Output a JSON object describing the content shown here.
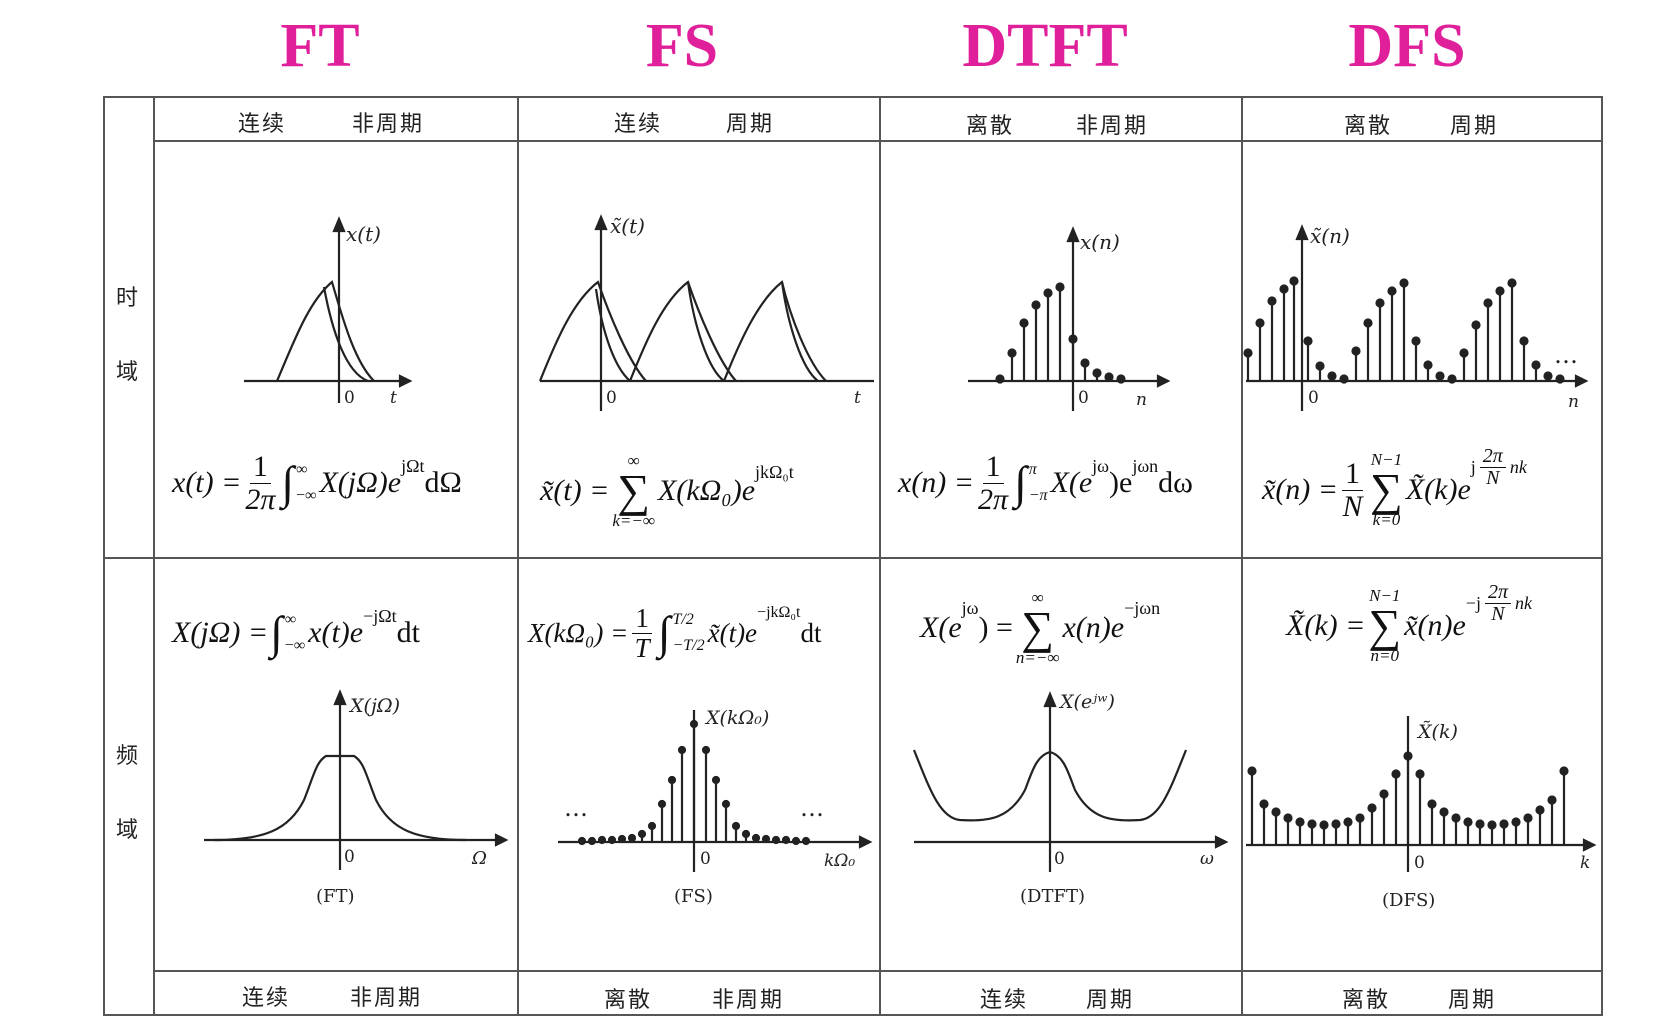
{
  "headers": [
    "FT",
    "FS",
    "DTFT",
    "DFS"
  ],
  "colors": {
    "header": "#e0209a",
    "line": "#555555",
    "ink": "#222222"
  },
  "time_labels": [
    {
      "a": "连续",
      "b": "非周期"
    },
    {
      "a": "连续",
      "b": "周期"
    },
    {
      "a": "离散",
      "b": "非周期"
    },
    {
      "a": "离散",
      "b": "周期"
    }
  ],
  "freq_labels": [
    {
      "a": "连续",
      "b": "非周期"
    },
    {
      "a": "离散",
      "b": "非周期"
    },
    {
      "a": "连续",
      "b": "周期"
    },
    {
      "a": "离散",
      "b": "周期"
    }
  ],
  "side": {
    "time_1": "时",
    "time_2": "域",
    "freq_1": "频",
    "freq_2": "域"
  },
  "time_plots": {
    "ft": {
      "ylabel": "x(t)",
      "origin": "0",
      "xlabel": "t"
    },
    "fs": {
      "ylabel": "x̃(t)",
      "origin": "0",
      "xlabel": "t"
    },
    "dtft": {
      "ylabel": "x(n)",
      "origin": "0",
      "xlabel": "n"
    },
    "dfs": {
      "ylabel": "x̃(n)",
      "origin": "0",
      "xlabel": "n",
      "dots": "…"
    }
  },
  "freq_plots": {
    "ft": {
      "ylabel": "X(jΩ)",
      "origin": "0",
      "xlabel": "Ω",
      "caption": "(FT)"
    },
    "fs": {
      "ylabel": "X(kΩ₀)",
      "origin": "0",
      "xlabel": "kΩ₀",
      "caption": "(FS)",
      "dots": "…"
    },
    "dtft": {
      "ylabel": "X(eʲʷ)",
      "origin": "0",
      "xlabel": "ω",
      "caption": "(DTFT)"
    },
    "dfs": {
      "ylabel": "X̃(k)",
      "origin": "0",
      "xlabel": "k",
      "caption": "(DFS)"
    }
  },
  "formulas": {
    "ft_time": {
      "lhs": "x(t) =",
      "num": "1",
      "den": "2π",
      "lim_top": "∞",
      "lim_bot": "−∞",
      "body": "X(jΩ)e",
      "exp": "jΩt",
      "tail": "dΩ"
    },
    "fs_time": {
      "lhs": "x̃(t) =",
      "sum_top": "∞",
      "sum_bot": "k=−∞",
      "body": "X(kΩ₀)e",
      "exp": "jkΩ₀t"
    },
    "dtft_time": {
      "lhs": "x(n) =",
      "num": "1",
      "den": "2π",
      "lim_top": "π",
      "lim_bot": "−π",
      "body": "X(e",
      "exp": "jω",
      "body2": ")e",
      "exp2": "jωn",
      "tail": "dω"
    },
    "dfs_time": {
      "lhs": "x̃(n) =",
      "num": "1",
      "den": "N",
      "sum_top": "N−1",
      "sum_bot": "k=0",
      "body": "X̃(k)e",
      "exp": "j",
      "exp_num": "2π",
      "exp_den": "N",
      "exp_tail": "nk"
    },
    "ft_freq": {
      "lhs": "X(jΩ) =",
      "lim_top": "∞",
      "lim_bot": "−∞",
      "body": "x(t)e",
      "exp": "−jΩt",
      "tail": "dt"
    },
    "fs_freq": {
      "lhs": "X(kΩ₀) =",
      "num": "1",
      "den": "T",
      "lim_top": "T/2",
      "lim_bot": "−T/2",
      "body": "x̃(t)e",
      "exp": "−jkΩ₀t",
      "tail": "dt"
    },
    "dtft_freq": {
      "lhs": "X(e",
      "lhs_exp": "jω",
      "lhs_tail": ") =",
      "sum_top": "∞",
      "sum_bot": "n=−∞",
      "body": "x(n)e",
      "exp": "−jωn"
    },
    "dfs_freq": {
      "lhs": "X̃(k) =",
      "sum_top": "N−1",
      "sum_bot": "n=0",
      "body": "x̃(n)e",
      "exp": "−j",
      "exp_num": "2π",
      "exp_den": "N",
      "exp_tail": "nk"
    }
  }
}
